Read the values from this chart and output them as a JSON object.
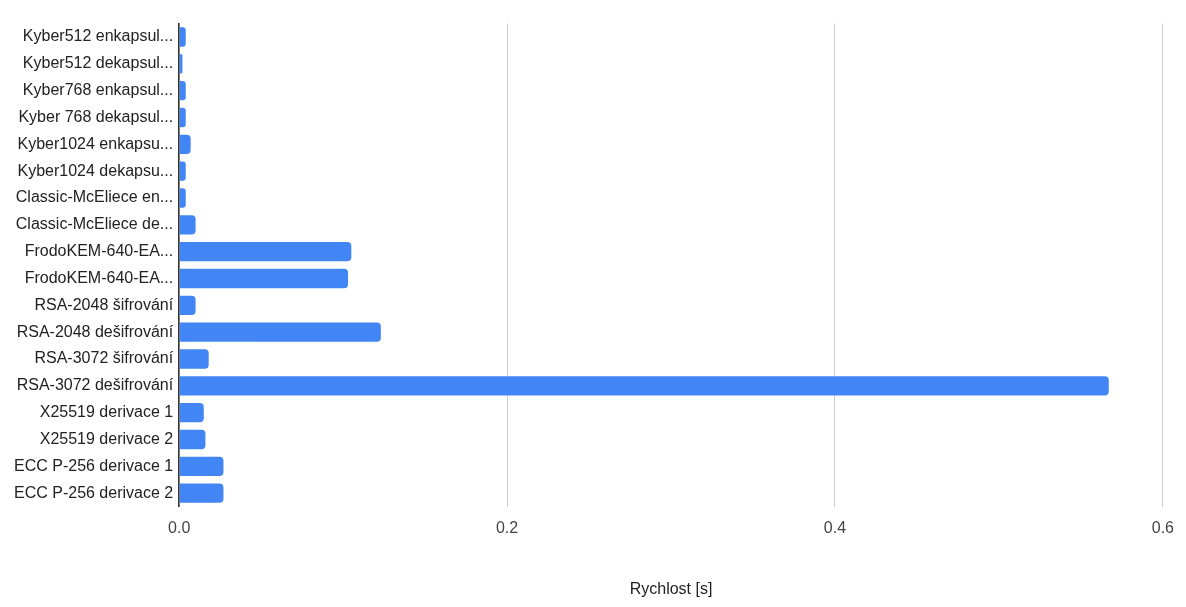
{
  "chart_data": {
    "type": "bar",
    "orientation": "horizontal",
    "xlabel": "Rychlost [s]",
    "categories": [
      "Kyber512 enkapsul...",
      "Kyber512 dekapsul...",
      "Kyber768 enkapsul...",
      "Kyber 768 dekapsul...",
      "Kyber1024 enkapsu...",
      "Kyber1024 dekapsu...",
      "Classic-McEliece en...",
      "Classic-McEliece de...",
      "FrodoKEM-640-EA...",
      "FrodoKEM-640-EA...",
      "RSA-2048 šifrování",
      "RSA-2048 dešifrování",
      "RSA-3072 šifrování",
      "RSA-3072 dešifrování",
      "X25519 derivace 1",
      "X25519 derivace 2",
      "ECC P-256 derivace 1",
      "ECC P-256 derivace 2"
    ],
    "values": [
      0.004,
      0.002,
      0.004,
      0.004,
      0.007,
      0.004,
      0.004,
      0.01,
      0.105,
      0.103,
      0.01,
      0.123,
      0.018,
      0.567,
      0.015,
      0.016,
      0.027,
      0.027
    ],
    "color": "#4285f4",
    "xlim": [
      0,
      0.6
    ],
    "xticks": [
      {
        "value": 0,
        "label": "0.0"
      },
      {
        "value": 0.2,
        "label": "0.2"
      },
      {
        "value": 0.4,
        "label": "0.4"
      },
      {
        "value": 0.6,
        "label": "0.6"
      }
    ],
    "grid": "x",
    "legend": false
  }
}
